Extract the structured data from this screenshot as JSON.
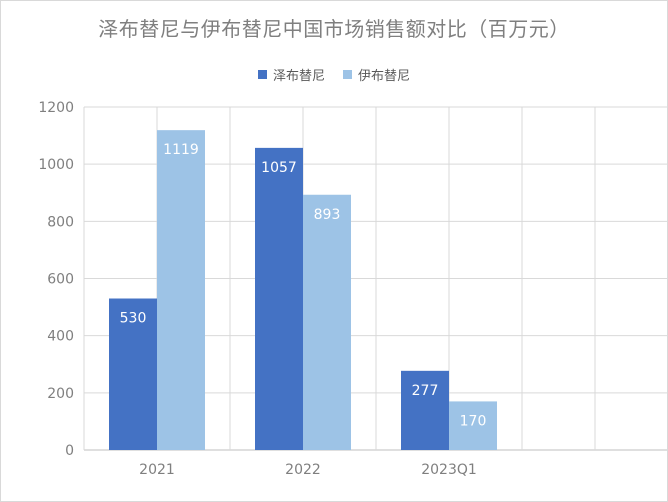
{
  "chart_data": {
    "type": "bar",
    "title": "泽布替尼与伊布替尼中国市场销售额对比（百万元）",
    "categories": [
      "2021",
      "2022",
      "2023Q1"
    ],
    "series": [
      {
        "name": "泽布替尼",
        "color": "#4472C4",
        "values": [
          530,
          1057,
          277
        ]
      },
      {
        "name": "伊布替尼",
        "color": "#9DC3E6",
        "values": [
          1119,
          893,
          170
        ]
      }
    ],
    "ylim": [
      0,
      1200
    ],
    "yticks": [
      0,
      200,
      400,
      600,
      800,
      1000,
      1200
    ],
    "grid": true,
    "legend_position": "top"
  }
}
